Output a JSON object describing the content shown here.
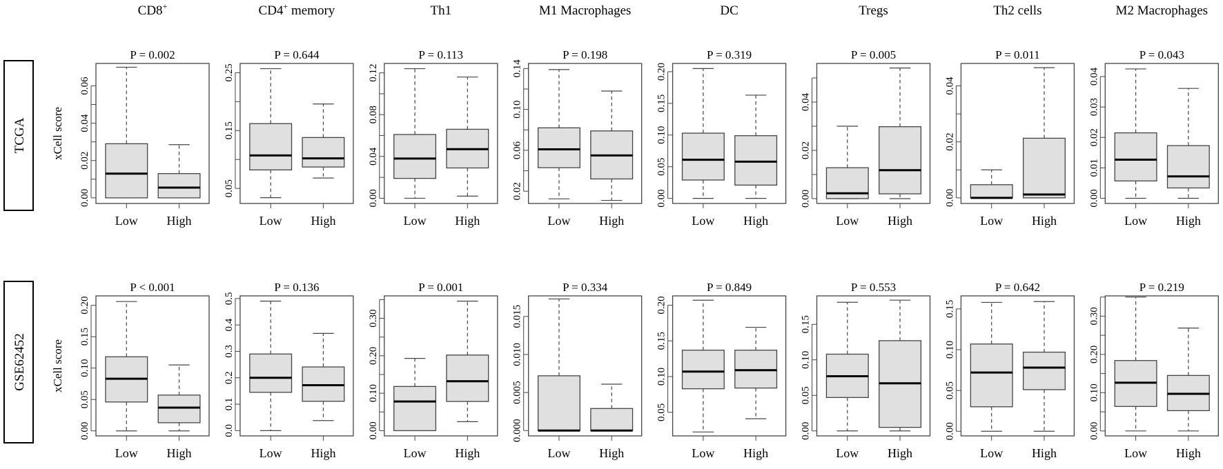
{
  "chart_data": {
    "type": "boxplot-grid",
    "ylabel": "xCell score",
    "group_labels": [
      "Low",
      "High"
    ],
    "columns": [
      "CD8+",
      "CD4+ memory",
      "Th1",
      "M1 Macrophages",
      "DC",
      "Tregs",
      "Th2 cells",
      "M2 Macrophages"
    ],
    "column_labels": [
      {
        "main": "CD8",
        "sup": "+",
        "rest": ""
      },
      {
        "main": "CD4",
        "sup": "+",
        "rest": " memory"
      },
      {
        "main": "Th1",
        "sup": "",
        "rest": ""
      },
      {
        "main": "M1 Macrophages",
        "sup": "",
        "rest": ""
      },
      {
        "main": "DC",
        "sup": "",
        "rest": ""
      },
      {
        "main": "Tregs",
        "sup": "",
        "rest": ""
      },
      {
        "main": "Th2 cells",
        "sup": "",
        "rest": ""
      },
      {
        "main": "M2 Macrophages",
        "sup": "",
        "rest": ""
      }
    ],
    "rows": [
      {
        "dataset": "TCGA",
        "panels": [
          {
            "p": "P = 0.002",
            "ylim": [
              -0.003,
              0.072
            ],
            "ticks": [
              0,
              0.01,
              0.02,
              0.03,
              0.04,
              0.05,
              0.06
            ],
            "tick_labels": [
              "0.00",
              "",
              "0.02",
              "",
              "0.04",
              "",
              "0.06"
            ],
            "boxes": [
              {
                "min": 0.0,
                "q1": 0.0,
                "median": 0.013,
                "q3": 0.029,
                "max": 0.07
              },
              {
                "min": 0.0,
                "q1": 0.0,
                "median": 0.0055,
                "q3": 0.013,
                "max": 0.0285
              }
            ]
          },
          {
            "p": "P = 0.644",
            "ylim": [
              0.024,
              0.266
            ],
            "ticks": [
              0.05,
              0.1,
              0.15,
              0.2,
              0.25
            ],
            "tick_labels": [
              "0.05",
              "",
              "0.15",
              "",
              "0.25"
            ],
            "boxes": [
              {
                "min": 0.034,
                "q1": 0.082,
                "median": 0.107,
                "q3": 0.162,
                "max": 0.257
              },
              {
                "min": 0.068,
                "q1": 0.087,
                "median": 0.102,
                "q3": 0.138,
                "max": 0.196
              }
            ]
          },
          {
            "p": "P = 0.113",
            "ylim": [
              -0.005,
              0.129
            ],
            "ticks": [
              0,
              0.02,
              0.04,
              0.06,
              0.08,
              0.1,
              0.12
            ],
            "tick_labels": [
              "0.00",
              "",
              "0.04",
              "",
              "0.08",
              "",
              "0.12"
            ],
            "boxes": [
              {
                "min": 0.0,
                "q1": 0.019,
                "median": 0.038,
                "q3": 0.061,
                "max": 0.124
              },
              {
                "min": 0.002,
                "q1": 0.029,
                "median": 0.047,
                "q3": 0.066,
                "max": 0.116
              }
            ]
          },
          {
            "p": "P = 0.198",
            "ylim": [
              0.008,
              0.145
            ],
            "ticks": [
              0.02,
              0.04,
              0.06,
              0.08,
              0.1,
              0.12,
              0.14
            ],
            "tick_labels": [
              "0.02",
              "",
              "0.06",
              "",
              "0.10",
              "",
              "0.14"
            ],
            "boxes": [
              {
                "min": 0.0125,
                "q1": 0.043,
                "median": 0.061,
                "q3": 0.082,
                "max": 0.139
              },
              {
                "min": 0.011,
                "q1": 0.032,
                "median": 0.055,
                "q3": 0.079,
                "max": 0.118
              }
            ]
          },
          {
            "p": "P = 0.319",
            "ylim": [
              -0.008,
              0.213
            ],
            "ticks": [
              0,
              0.05,
              0.1,
              0.15,
              0.2
            ],
            "tick_labels": [
              "0.00",
              "0.05",
              "0.10",
              "0.15",
              "0.20"
            ],
            "boxes": [
              {
                "min": 0.0,
                "q1": 0.029,
                "median": 0.061,
                "q3": 0.103,
                "max": 0.205
              },
              {
                "min": 0.0,
                "q1": 0.021,
                "median": 0.058,
                "q3": 0.099,
                "max": 0.163
              }
            ]
          },
          {
            "p": "P = 0.005",
            "ylim": [
              -0.002,
              0.056
            ],
            "ticks": [
              0,
              0.01,
              0.02,
              0.03,
              0.04,
              0.05
            ],
            "tick_labels": [
              "0.00",
              "",
              "0.02",
              "",
              "0.04",
              ""
            ],
            "boxes": [
              {
                "min": 0.0,
                "q1": 0.0,
                "median": 0.0022,
                "q3": 0.0128,
                "max": 0.03
              },
              {
                "min": 0.0,
                "q1": 0.002,
                "median": 0.0118,
                "q3": 0.0298,
                "max": 0.0541
              }
            ]
          },
          {
            "p": "P = 0.011",
            "ylim": [
              -0.002,
              0.048
            ],
            "ticks": [
              0,
              0.01,
              0.02,
              0.03,
              0.04
            ],
            "tick_labels": [
              "0.00",
              "",
              "0.02",
              "",
              "0.04"
            ],
            "boxes": [
              {
                "min": 0.0,
                "q1": 0.0,
                "median": 0.0,
                "q3": 0.0047,
                "max": 0.01
              },
              {
                "min": 0.0,
                "q1": 0.0,
                "median": 0.0012,
                "q3": 0.0213,
                "max": 0.0465
              }
            ]
          },
          {
            "p": "P = 0.043",
            "ylim": [
              -0.0017,
              0.0443
            ],
            "ticks": [
              0,
              0.01,
              0.02,
              0.03,
              0.04
            ],
            "tick_labels": [
              "0.00",
              "0.01",
              "0.02",
              "0.03",
              "0.04"
            ],
            "boxes": [
              {
                "min": 0.0,
                "q1": 0.0057,
                "median": 0.0127,
                "q3": 0.0215,
                "max": 0.0425
              },
              {
                "min": 0.0,
                "q1": 0.0034,
                "median": 0.0072,
                "q3": 0.0173,
                "max": 0.0361
              }
            ]
          }
        ]
      },
      {
        "dataset": "GSE62452",
        "panels": [
          {
            "p": "P < 0.001",
            "ylim": [
              -0.008,
              0.215
            ],
            "ticks": [
              0,
              0.05,
              0.1,
              0.15,
              0.2
            ],
            "tick_labels": [
              "0.00",
              "0.05",
              "0.10",
              "0.15",
              "0.20"
            ],
            "boxes": [
              {
                "min": 0.0,
                "q1": 0.046,
                "median": 0.083,
                "q3": 0.118,
                "max": 0.206
              },
              {
                "min": 0.0,
                "q1": 0.013,
                "median": 0.037,
                "q3": 0.057,
                "max": 0.105
              }
            ]
          },
          {
            "p": "P = 0.136",
            "ylim": [
              -0.02,
              0.51
            ],
            "ticks": [
              0,
              0.1,
              0.2,
              0.3,
              0.4,
              0.5
            ],
            "tick_labels": [
              "0.0",
              "0.1",
              "0.2",
              "0.3",
              "0.4",
              "0.5"
            ],
            "boxes": [
              {
                "min": 0.0,
                "q1": 0.145,
                "median": 0.2,
                "q3": 0.29,
                "max": 0.49
              },
              {
                "min": 0.038,
                "q1": 0.111,
                "median": 0.172,
                "q3": 0.241,
                "max": 0.368
              }
            ]
          },
          {
            "p": "P = 0.001",
            "ylim": [
              -0.014,
              0.36
            ],
            "ticks": [
              0,
              0.05,
              0.1,
              0.15,
              0.2,
              0.25,
              0.3,
              0.35
            ],
            "tick_labels": [
              "0.00",
              "",
              "0.10",
              "",
              "0.20",
              "",
              "0.30",
              ""
            ],
            "boxes": [
              {
                "min": 0.0,
                "q1": 0.0,
                "median": 0.078,
                "q3": 0.118,
                "max": 0.193
              },
              {
                "min": 0.024,
                "q1": 0.078,
                "median": 0.132,
                "q3": 0.202,
                "max": 0.346
              }
            ]
          },
          {
            "p": "P = 0.334",
            "ylim": [
              -0.0007,
              0.0177
            ],
            "ticks": [
              0,
              0.005,
              0.01,
              0.015
            ],
            "tick_labels": [
              "0.000",
              "0.005",
              "0.010",
              "0.015"
            ],
            "boxes": [
              {
                "min": 0.0,
                "q1": 0.0,
                "median": 0.0,
                "q3": 0.0072,
                "max": 0.0173
              },
              {
                "min": 0.0,
                "q1": 0.0,
                "median": 0.0,
                "q3": 0.0029,
                "max": 0.0061
              }
            ]
          },
          {
            "p": "P = 0.849",
            "ylim": [
              0.017,
              0.213
            ],
            "ticks": [
              0.05,
              0.1,
              0.15,
              0.2
            ],
            "tick_labels": [
              "0.05",
              "0.10",
              "0.15",
              "0.20"
            ],
            "boxes": [
              {
                "min": 0.0225,
                "q1": 0.083,
                "median": 0.107,
                "q3": 0.137,
                "max": 0.207
              },
              {
                "min": 0.041,
                "q1": 0.084,
                "median": 0.109,
                "q3": 0.137,
                "max": 0.169
              }
            ]
          },
          {
            "p": "P = 0.553",
            "ylim": [
              -0.007,
              0.19
            ],
            "ticks": [
              0,
              0.05,
              0.1,
              0.15
            ],
            "tick_labels": [
              "0.00",
              "0.05",
              "0.10",
              "0.15"
            ],
            "boxes": [
              {
                "min": 0.0,
                "q1": 0.047,
                "median": 0.077,
                "q3": 0.108,
                "max": 0.181
              },
              {
                "min": 0.0,
                "q1": 0.005,
                "median": 0.067,
                "q3": 0.127,
                "max": 0.184
              }
            ]
          },
          {
            "p": "P = 0.642",
            "ylim": [
              -0.0057,
              0.166
            ],
            "ticks": [
              0,
              0.05,
              0.1,
              0.15
            ],
            "tick_labels": [
              "0.00",
              "0.05",
              "0.10",
              "0.15"
            ],
            "boxes": [
              {
                "min": 0.0,
                "q1": 0.03,
                "median": 0.072,
                "q3": 0.107,
                "max": 0.158
              },
              {
                "min": 0.0,
                "q1": 0.051,
                "median": 0.078,
                "q3": 0.097,
                "max": 0.159
              }
            ]
          },
          {
            "p": "P = 0.219",
            "ylim": [
              -0.013,
              0.353
            ],
            "ticks": [
              0,
              0.05,
              0.1,
              0.15,
              0.2,
              0.25,
              0.3,
              0.35
            ],
            "tick_labels": [
              "0.00",
              "",
              "0.10",
              "",
              "0.20",
              "",
              "0.30",
              ""
            ],
            "boxes": [
              {
                "min": 0.0,
                "q1": 0.064,
                "median": 0.126,
                "q3": 0.184,
                "max": 0.35
              },
              {
                "min": 0.0,
                "q1": 0.053,
                "median": 0.097,
                "q3": 0.145,
                "max": 0.269
              }
            ]
          }
        ]
      }
    ]
  }
}
